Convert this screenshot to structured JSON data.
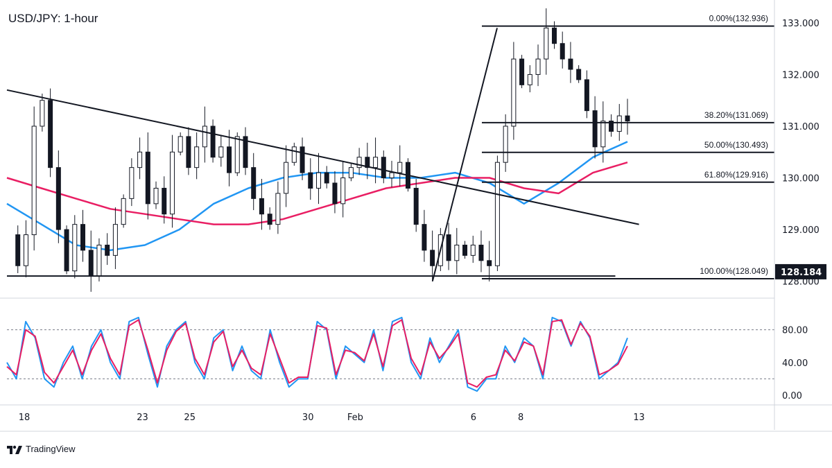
{
  "chart_data": [
    {
      "type": "candlestick",
      "title": "USD/JPY: 1-hour",
      "ylim": [
        127.7,
        133.2
      ],
      "y_ticks": [
        "133.000",
        "132.000",
        "131.000",
        "130.000",
        "129.000",
        "128.000"
      ],
      "x_ticks": [
        "18",
        "23",
        "25",
        "30",
        "Feb",
        "6",
        "8",
        "13"
      ],
      "last_price_label": "128.184",
      "price_path": [
        [
          "Jan 18",
          128.9
        ],
        [
          "Jan 18",
          128.3
        ],
        [
          "Jan 18",
          128.9
        ],
        [
          "Jan 18",
          131.0
        ],
        [
          "Jan 18",
          131.5
        ],
        [
          "Jan 19",
          130.2
        ],
        [
          "Jan 19",
          129.0
        ],
        [
          "Jan 19",
          128.2
        ],
        [
          "Jan 19",
          129.1
        ],
        [
          "Jan 20",
          128.6
        ],
        [
          "Jan 20",
          128.1
        ],
        [
          "Jan 20",
          128.7
        ],
        [
          "Jan 21",
          128.5
        ],
        [
          "Jan 22",
          129.1
        ],
        [
          "Jan 22",
          129.6
        ],
        [
          "Jan 22",
          130.2
        ],
        [
          "Jan 22",
          130.5
        ],
        [
          "Jan 23",
          129.5
        ],
        [
          "Jan 23",
          129.8
        ],
        [
          "Jan 23",
          129.3
        ],
        [
          "Jan 24",
          130.5
        ],
        [
          "Jan 24",
          130.8
        ],
        [
          "Jan 24",
          130.2
        ],
        [
          "Jan 24",
          130.6
        ],
        [
          "Jan 24",
          131.0
        ],
        [
          "Jan 25",
          130.4
        ],
        [
          "Jan 25",
          130.6
        ],
        [
          "Jan 25",
          130.1
        ],
        [
          "Jan 26",
          130.8
        ],
        [
          "Jan 26",
          130.2
        ],
        [
          "Jan 26",
          129.6
        ],
        [
          "Jan 26",
          129.3
        ],
        [
          "Jan 27",
          129.1
        ],
        [
          "Jan 27",
          129.7
        ],
        [
          "Jan 27",
          130.3
        ],
        [
          "Jan 28",
          130.6
        ],
        [
          "Jan 28",
          130.1
        ],
        [
          "Jan 29",
          129.8
        ],
        [
          "Jan 29",
          130.1
        ],
        [
          "Jan 30",
          129.9
        ],
        [
          "Jan 30",
          129.5
        ],
        [
          "Jan 30",
          130.0
        ],
        [
          "Jan 30",
          130.2
        ],
        [
          "Jan 31",
          130.4
        ],
        [
          "Jan 31",
          130.2
        ],
        [
          "Jan 31",
          130.4
        ],
        [
          "Feb 1",
          130.0
        ],
        [
          "Feb 1",
          130.1
        ],
        [
          "Feb 1",
          130.3
        ],
        [
          "Feb 1",
          129.8
        ],
        [
          "Feb 2",
          129.1
        ],
        [
          "Feb 2",
          128.6
        ],
        [
          "Feb 2",
          128.3
        ],
        [
          "Feb 3",
          128.9
        ],
        [
          "Feb 3",
          128.4
        ],
        [
          "Feb 3",
          128.7
        ],
        [
          "Feb 3",
          128.5
        ],
        [
          "Feb 4",
          128.7
        ],
        [
          "Feb 4",
          128.4
        ],
        [
          "Feb 5",
          128.3
        ],
        [
          "Feb 6",
          130.3
        ],
        [
          "Feb 6",
          131.0
        ],
        [
          "Feb 6",
          132.3
        ],
        [
          "Feb 6",
          131.8
        ],
        [
          "Feb 6",
          132.0
        ],
        [
          "Feb 6",
          132.3
        ],
        [
          "Feb 7",
          132.9
        ],
        [
          "Feb 7",
          132.6
        ],
        [
          "Feb 7",
          132.3
        ],
        [
          "Feb 7",
          132.1
        ],
        [
          "Feb 7",
          131.9
        ],
        [
          "Feb 8",
          131.3
        ],
        [
          "Feb 8",
          130.6
        ],
        [
          "Feb 8",
          131.1
        ],
        [
          "Feb 8",
          130.9
        ],
        [
          "Feb 8",
          131.2
        ],
        [
          "Feb 8",
          131.1
        ]
      ],
      "moving_averages": [
        {
          "color": "#2196f3",
          "values": [
            129.5,
            129.1,
            128.7,
            128.6,
            128.7,
            129.0,
            129.5,
            129.8,
            130.0,
            130.1,
            130.1,
            130.0,
            130.0,
            130.1,
            129.9,
            129.5,
            129.9,
            130.4,
            130.7
          ]
        },
        {
          "color": "#e91e63",
          "values": [
            130.0,
            129.8,
            129.6,
            129.4,
            129.3,
            129.2,
            129.1,
            129.1,
            129.2,
            129.4,
            129.6,
            129.8,
            129.9,
            130.0,
            130.0,
            129.8,
            129.7,
            130.1,
            130.3
          ]
        }
      ],
      "trendlines": [
        {
          "from": [
            "Jan 18",
            131.7
          ],
          "to": [
            "Feb 13",
            129.1
          ],
          "label": ""
        },
        {
          "from": [
            "Jan 18",
            128.1
          ],
          "to": [
            "Feb 12",
            128.1
          ],
          "label": ""
        },
        {
          "from": [
            "Feb 5",
            128.0
          ],
          "to": [
            "Feb 7",
            132.9
          ],
          "label": ""
        }
      ],
      "fibonacci": [
        {
          "label": "0.00%(132.936)",
          "price": 132.936
        },
        {
          "label": "38.20%(131.069)",
          "price": 131.069
        },
        {
          "label": "50.00%(130.493)",
          "price": 130.493
        },
        {
          "label": "61.80%(129.916)",
          "price": 129.916
        },
        {
          "label": "100.00%(128.049)",
          "price": 128.049
        }
      ]
    },
    {
      "type": "line",
      "title": "",
      "ylim": [
        0,
        100
      ],
      "y_ticks": [
        "80.00",
        "40.00",
        "0.00"
      ],
      "levels": [
        80,
        20
      ],
      "series": [
        {
          "color": "#2196f3",
          "values": [
            40,
            20,
            90,
            70,
            20,
            10,
            40,
            60,
            20,
            60,
            80,
            40,
            20,
            90,
            95,
            50,
            10,
            60,
            80,
            90,
            40,
            20,
            70,
            80,
            30,
            60,
            30,
            20,
            80,
            40,
            10,
            20,
            20,
            90,
            80,
            20,
            60,
            50,
            40,
            80,
            30,
            90,
            95,
            40,
            20,
            70,
            40,
            60,
            80,
            10,
            5,
            20,
            20,
            60,
            40,
            70,
            60,
            20,
            95,
            90,
            60,
            90,
            70,
            20,
            30,
            40,
            70
          ]
        },
        {
          "color": "#e91e63",
          "values": [
            35,
            25,
            80,
            72,
            28,
            15,
            35,
            55,
            25,
            55,
            75,
            45,
            25,
            85,
            92,
            55,
            15,
            55,
            78,
            88,
            45,
            25,
            65,
            78,
            35,
            55,
            33,
            25,
            75,
            45,
            15,
            22,
            22,
            85,
            82,
            25,
            55,
            52,
            42,
            75,
            35,
            85,
            92,
            45,
            25,
            65,
            45,
            58,
            75,
            15,
            10,
            22,
            25,
            55,
            42,
            65,
            60,
            25,
            90,
            92,
            62,
            88,
            72,
            25,
            30,
            38,
            60
          ]
        }
      ]
    }
  ],
  "brand": {
    "name": "TradingView"
  }
}
